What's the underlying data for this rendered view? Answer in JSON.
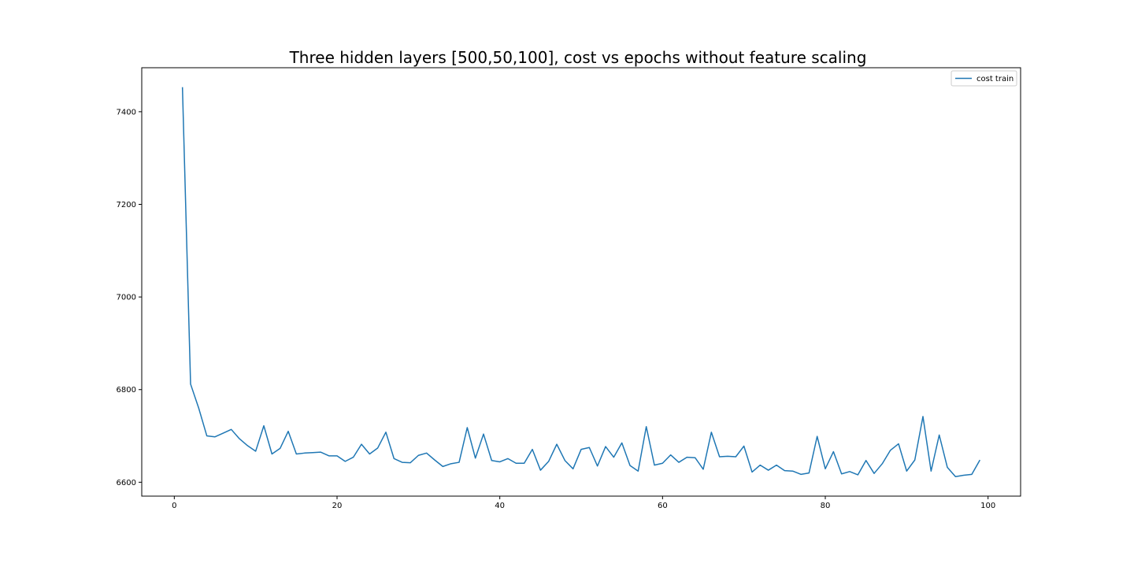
{
  "chart_data": {
    "type": "line",
    "title": "Three hidden layers [500,50,100], cost vs epochs without feature scaling",
    "xlabel": "",
    "ylabel": "",
    "xlim": [
      -4,
      104
    ],
    "ylim": [
      6570,
      7495
    ],
    "xticks": [
      0,
      20,
      40,
      60,
      80,
      100
    ],
    "yticks": [
      6600,
      6800,
      7000,
      7200,
      7400
    ],
    "grid": false,
    "legend_position": "top-right",
    "colors": {
      "series": "#1f77b4"
    },
    "series": [
      {
        "name": "cost train",
        "x": [
          1,
          2,
          3,
          4,
          5,
          6,
          7,
          8,
          9,
          10,
          11,
          12,
          13,
          14,
          15,
          16,
          17,
          18,
          19,
          20,
          21,
          22,
          23,
          24,
          25,
          26,
          27,
          28,
          29,
          30,
          31,
          32,
          33,
          34,
          35,
          36,
          37,
          38,
          39,
          40,
          41,
          42,
          43,
          44,
          45,
          46,
          47,
          48,
          49,
          50,
          51,
          52,
          53,
          54,
          55,
          56,
          57,
          58,
          59,
          60,
          61,
          62,
          63,
          64,
          65,
          66,
          67,
          68,
          69,
          70,
          71,
          72,
          73,
          74,
          75,
          76,
          77,
          78,
          79,
          80,
          81,
          82,
          83,
          84,
          85,
          86,
          87,
          88,
          89,
          90,
          91,
          92,
          93,
          94,
          95,
          96,
          97,
          98,
          99
        ],
        "values": [
          7453,
          6812,
          6760,
          6700,
          6698,
          6706,
          6714,
          6694,
          6679,
          6667,
          6722,
          6661,
          6673,
          6710,
          6661,
          6663,
          6664,
          6665,
          6657,
          6657,
          6645,
          6654,
          6682,
          6661,
          6674,
          6708,
          6651,
          6643,
          6642,
          6658,
          6663,
          6648,
          6634,
          6640,
          6643,
          6718,
          6652,
          6704,
          6647,
          6644,
          6651,
          6641,
          6641,
          6671,
          6626,
          6645,
          6682,
          6647,
          6629,
          6671,
          6675,
          6635,
          6677,
          6654,
          6685,
          6636,
          6624,
          6720,
          6637,
          6641,
          6659,
          6643,
          6654,
          6653,
          6628,
          6708,
          6655,
          6656,
          6655,
          6678,
          6622,
          6637,
          6626,
          6637,
          6625,
          6624,
          6617,
          6620,
          6699,
          6629,
          6666,
          6618,
          6623,
          6616,
          6647,
          6619,
          6640,
          6669,
          6683,
          6624,
          6648,
          6742,
          6624,
          6702,
          6632,
          6612,
          6615,
          6617,
          6648
        ]
      }
    ]
  }
}
